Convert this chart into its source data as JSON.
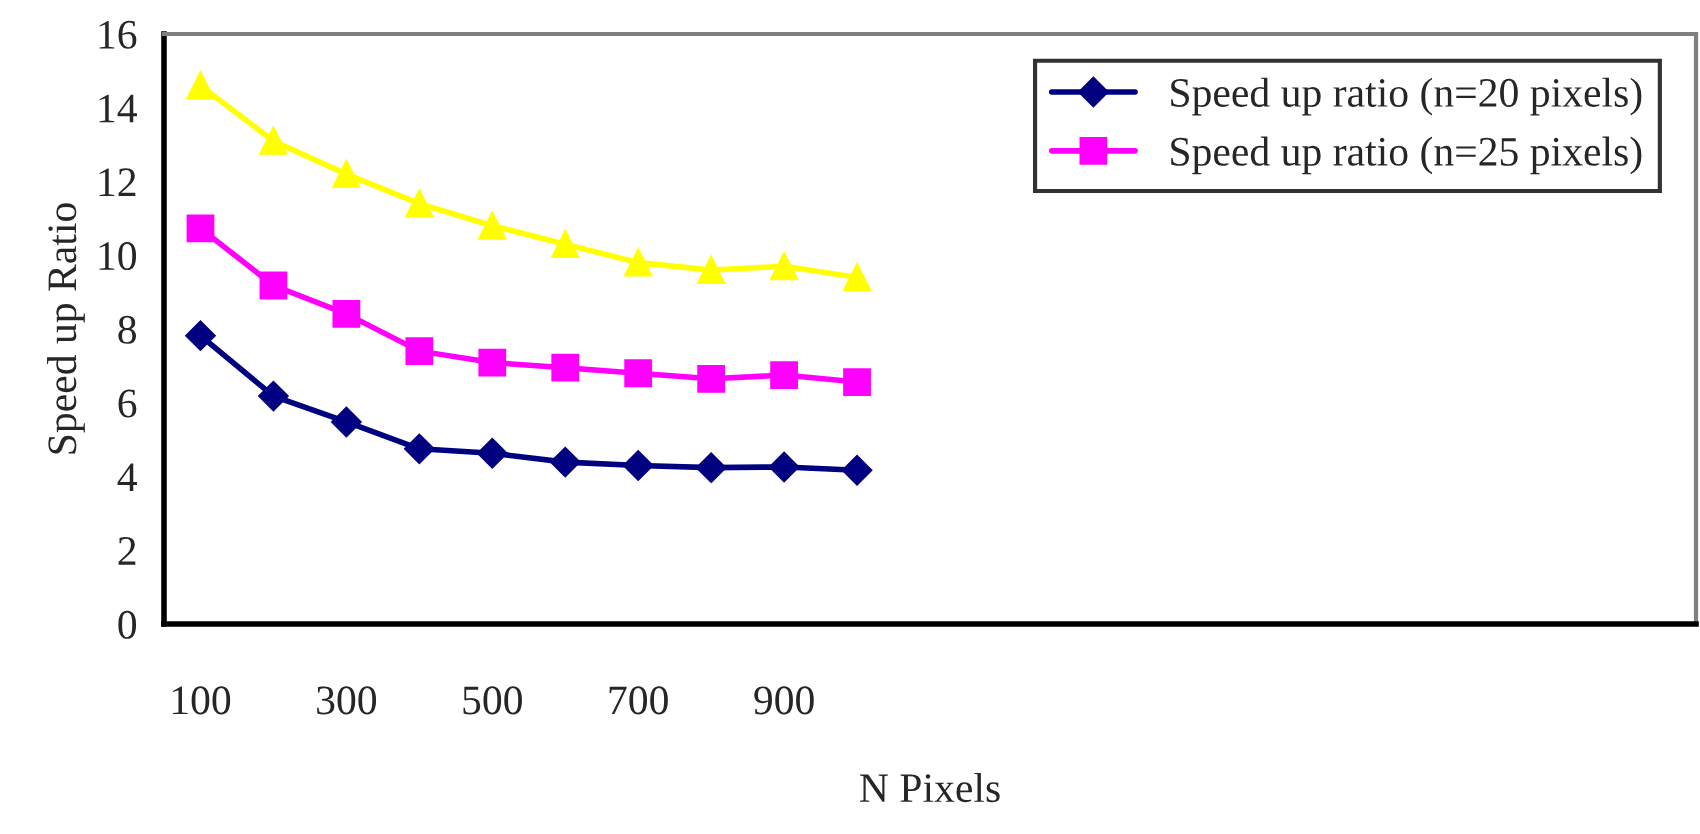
{
  "chart_data": {
    "type": "line",
    "xlabel": "N Pixels",
    "ylabel": "Speed up Ratio",
    "categories": [
      "100",
      null,
      "300",
      null,
      "500",
      null,
      "700",
      null,
      "900",
      null,
      null,
      null,
      null,
      null,
      null,
      null,
      null,
      null,
      null,
      null,
      null
    ],
    "series": [
      {
        "name": "Speed up ratio (n=20 pixels)",
        "color": "#000080",
        "marker": "diamond",
        "values": [
          7.82,
          6.18,
          5.48,
          4.75,
          4.63,
          4.39,
          4.3,
          4.24,
          4.26,
          4.17,
          null,
          null,
          null,
          null,
          null,
          null,
          null,
          null,
          null,
          null,
          null
        ]
      },
      {
        "name": "Speed up ratio (n=25 pixels)",
        "color": "#ff00ff",
        "marker": "square",
        "values": [
          10.73,
          9.18,
          8.41,
          7.4,
          7.09,
          6.95,
          6.8,
          6.65,
          6.75,
          6.56,
          null,
          null,
          null,
          null,
          null,
          null,
          null,
          null,
          null,
          null,
          null
        ]
      },
      {
        "color": "#ffff00",
        "marker": "triangle",
        "values": [
          14.6,
          13.1,
          12.2,
          11.4,
          10.8,
          10.3,
          9.8,
          9.6,
          9.7,
          9.4,
          null,
          null,
          null,
          null,
          null,
          null,
          null,
          null,
          null,
          null,
          null
        ]
      }
    ],
    "ylim": [
      0,
      16
    ],
    "yticks": [
      0,
      2,
      4,
      6,
      8,
      10,
      12,
      14,
      16
    ],
    "grid": false,
    "legend": "top right"
  }
}
